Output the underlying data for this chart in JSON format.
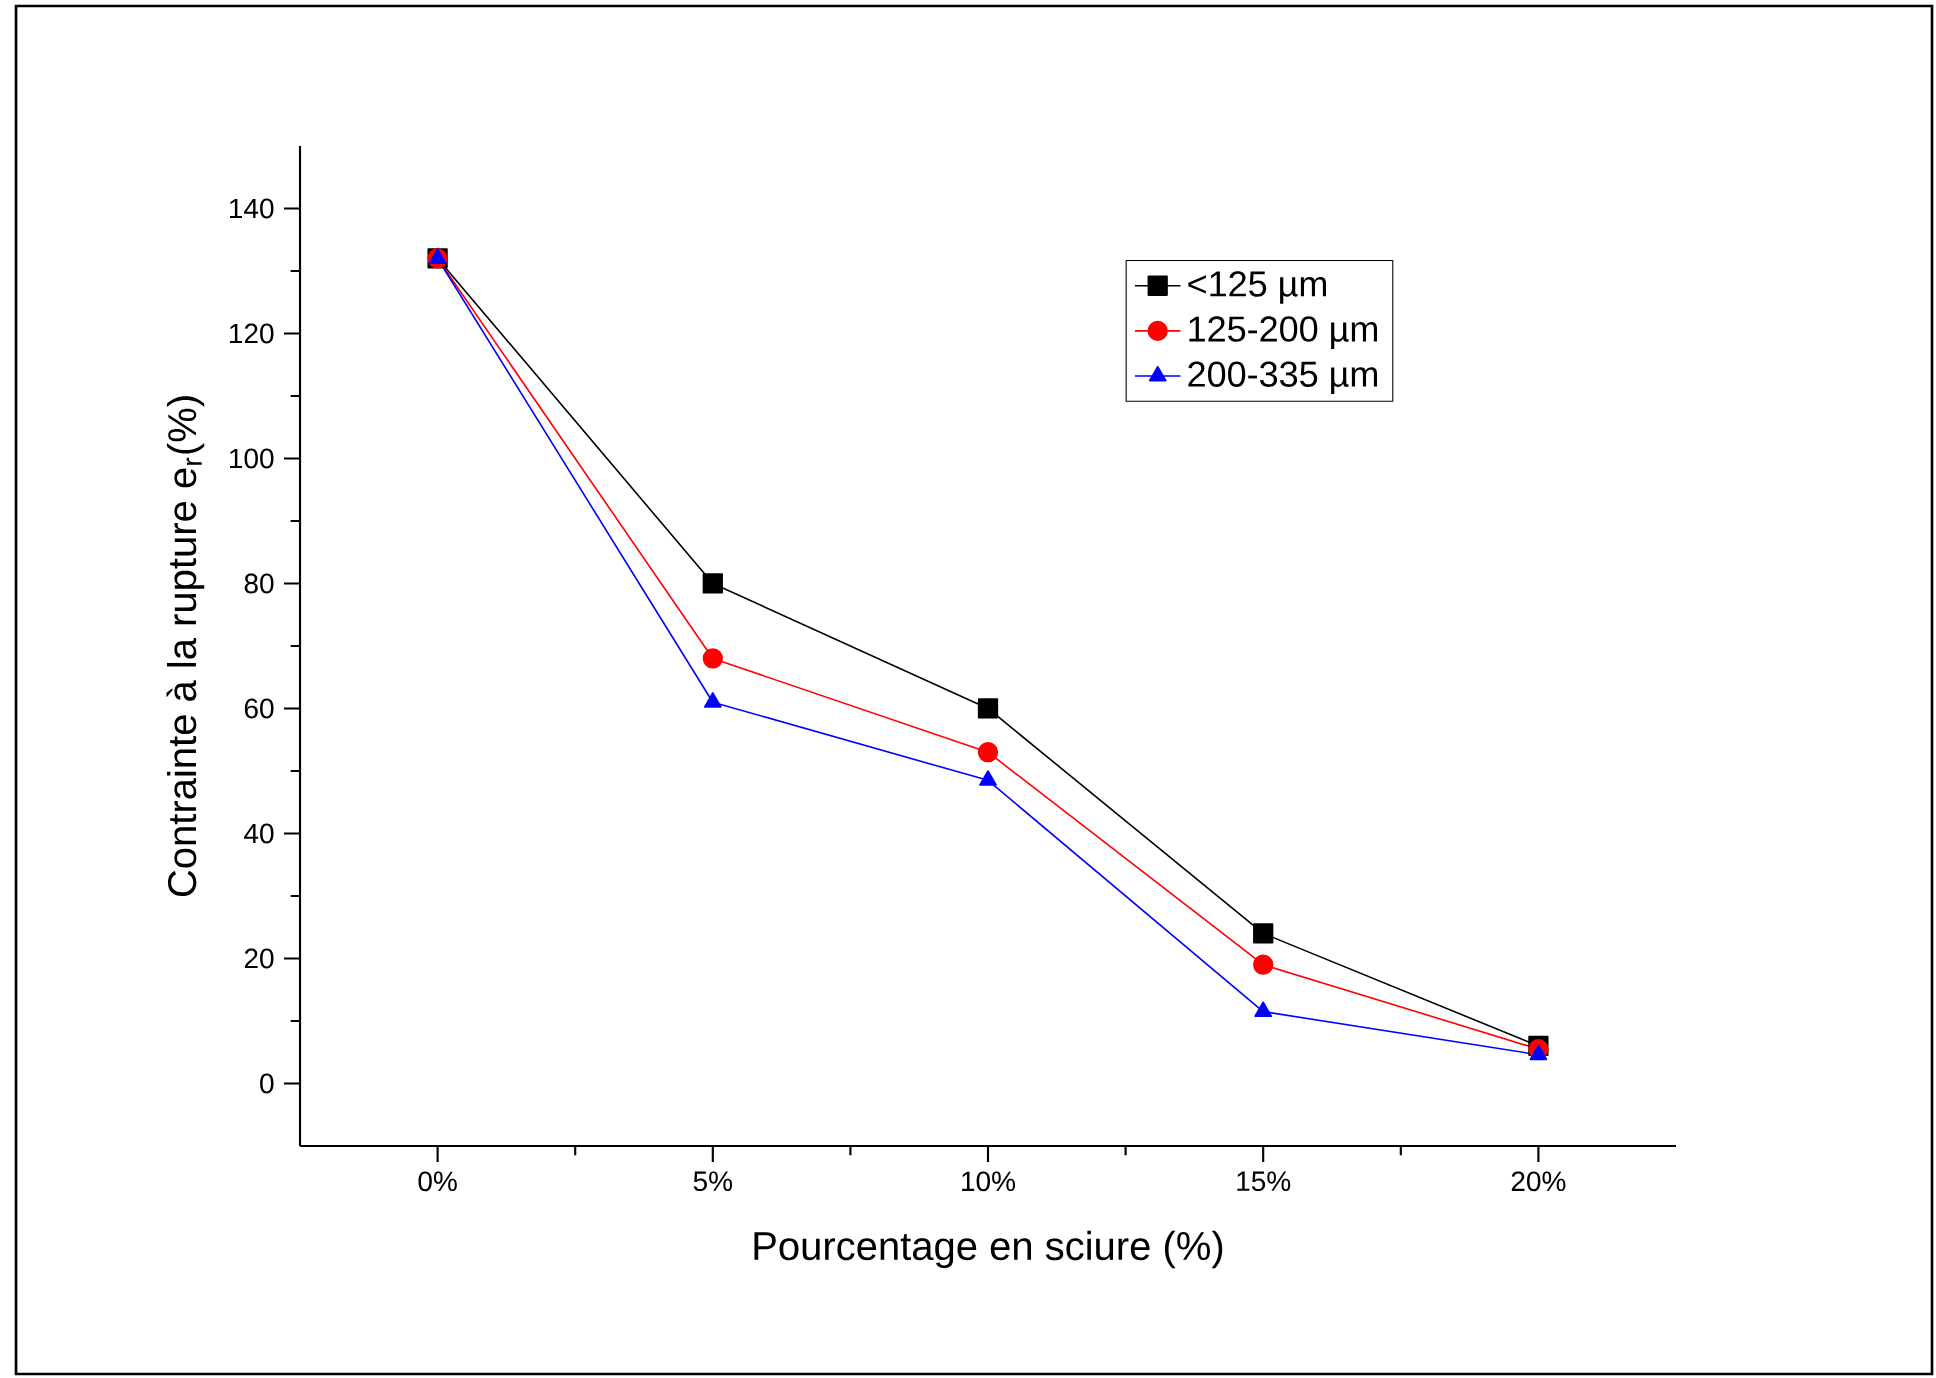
{
  "chart_data": {
    "type": "line",
    "xlabel": "Pourcentage en sciure (%)",
    "ylabel": "Contrainte à la rupture e$_{r}$(%)",
    "categories": [
      "0%",
      "5%",
      "10%",
      "15%",
      "20%"
    ],
    "ylim": [
      -10,
      150
    ],
    "yticks": [
      0,
      20,
      40,
      60,
      80,
      100,
      120,
      140
    ],
    "legend": "top right",
    "line_style": "solid",
    "series": [
      {
        "name": "<125 µm",
        "color": "#000000",
        "marker": "square",
        "values": [
          132,
          80,
          60,
          24,
          6
        ]
      },
      {
        "name": "125-200 µm",
        "color": "#ff0000",
        "marker": "circle",
        "values": [
          132,
          68,
          53,
          19,
          5.5
        ]
      },
      {
        "name": "200-335 µm",
        "color": "#0000ff",
        "marker": "triangle",
        "values": [
          132,
          61,
          48.5,
          11.5,
          4.6
        ]
      }
    ]
  }
}
